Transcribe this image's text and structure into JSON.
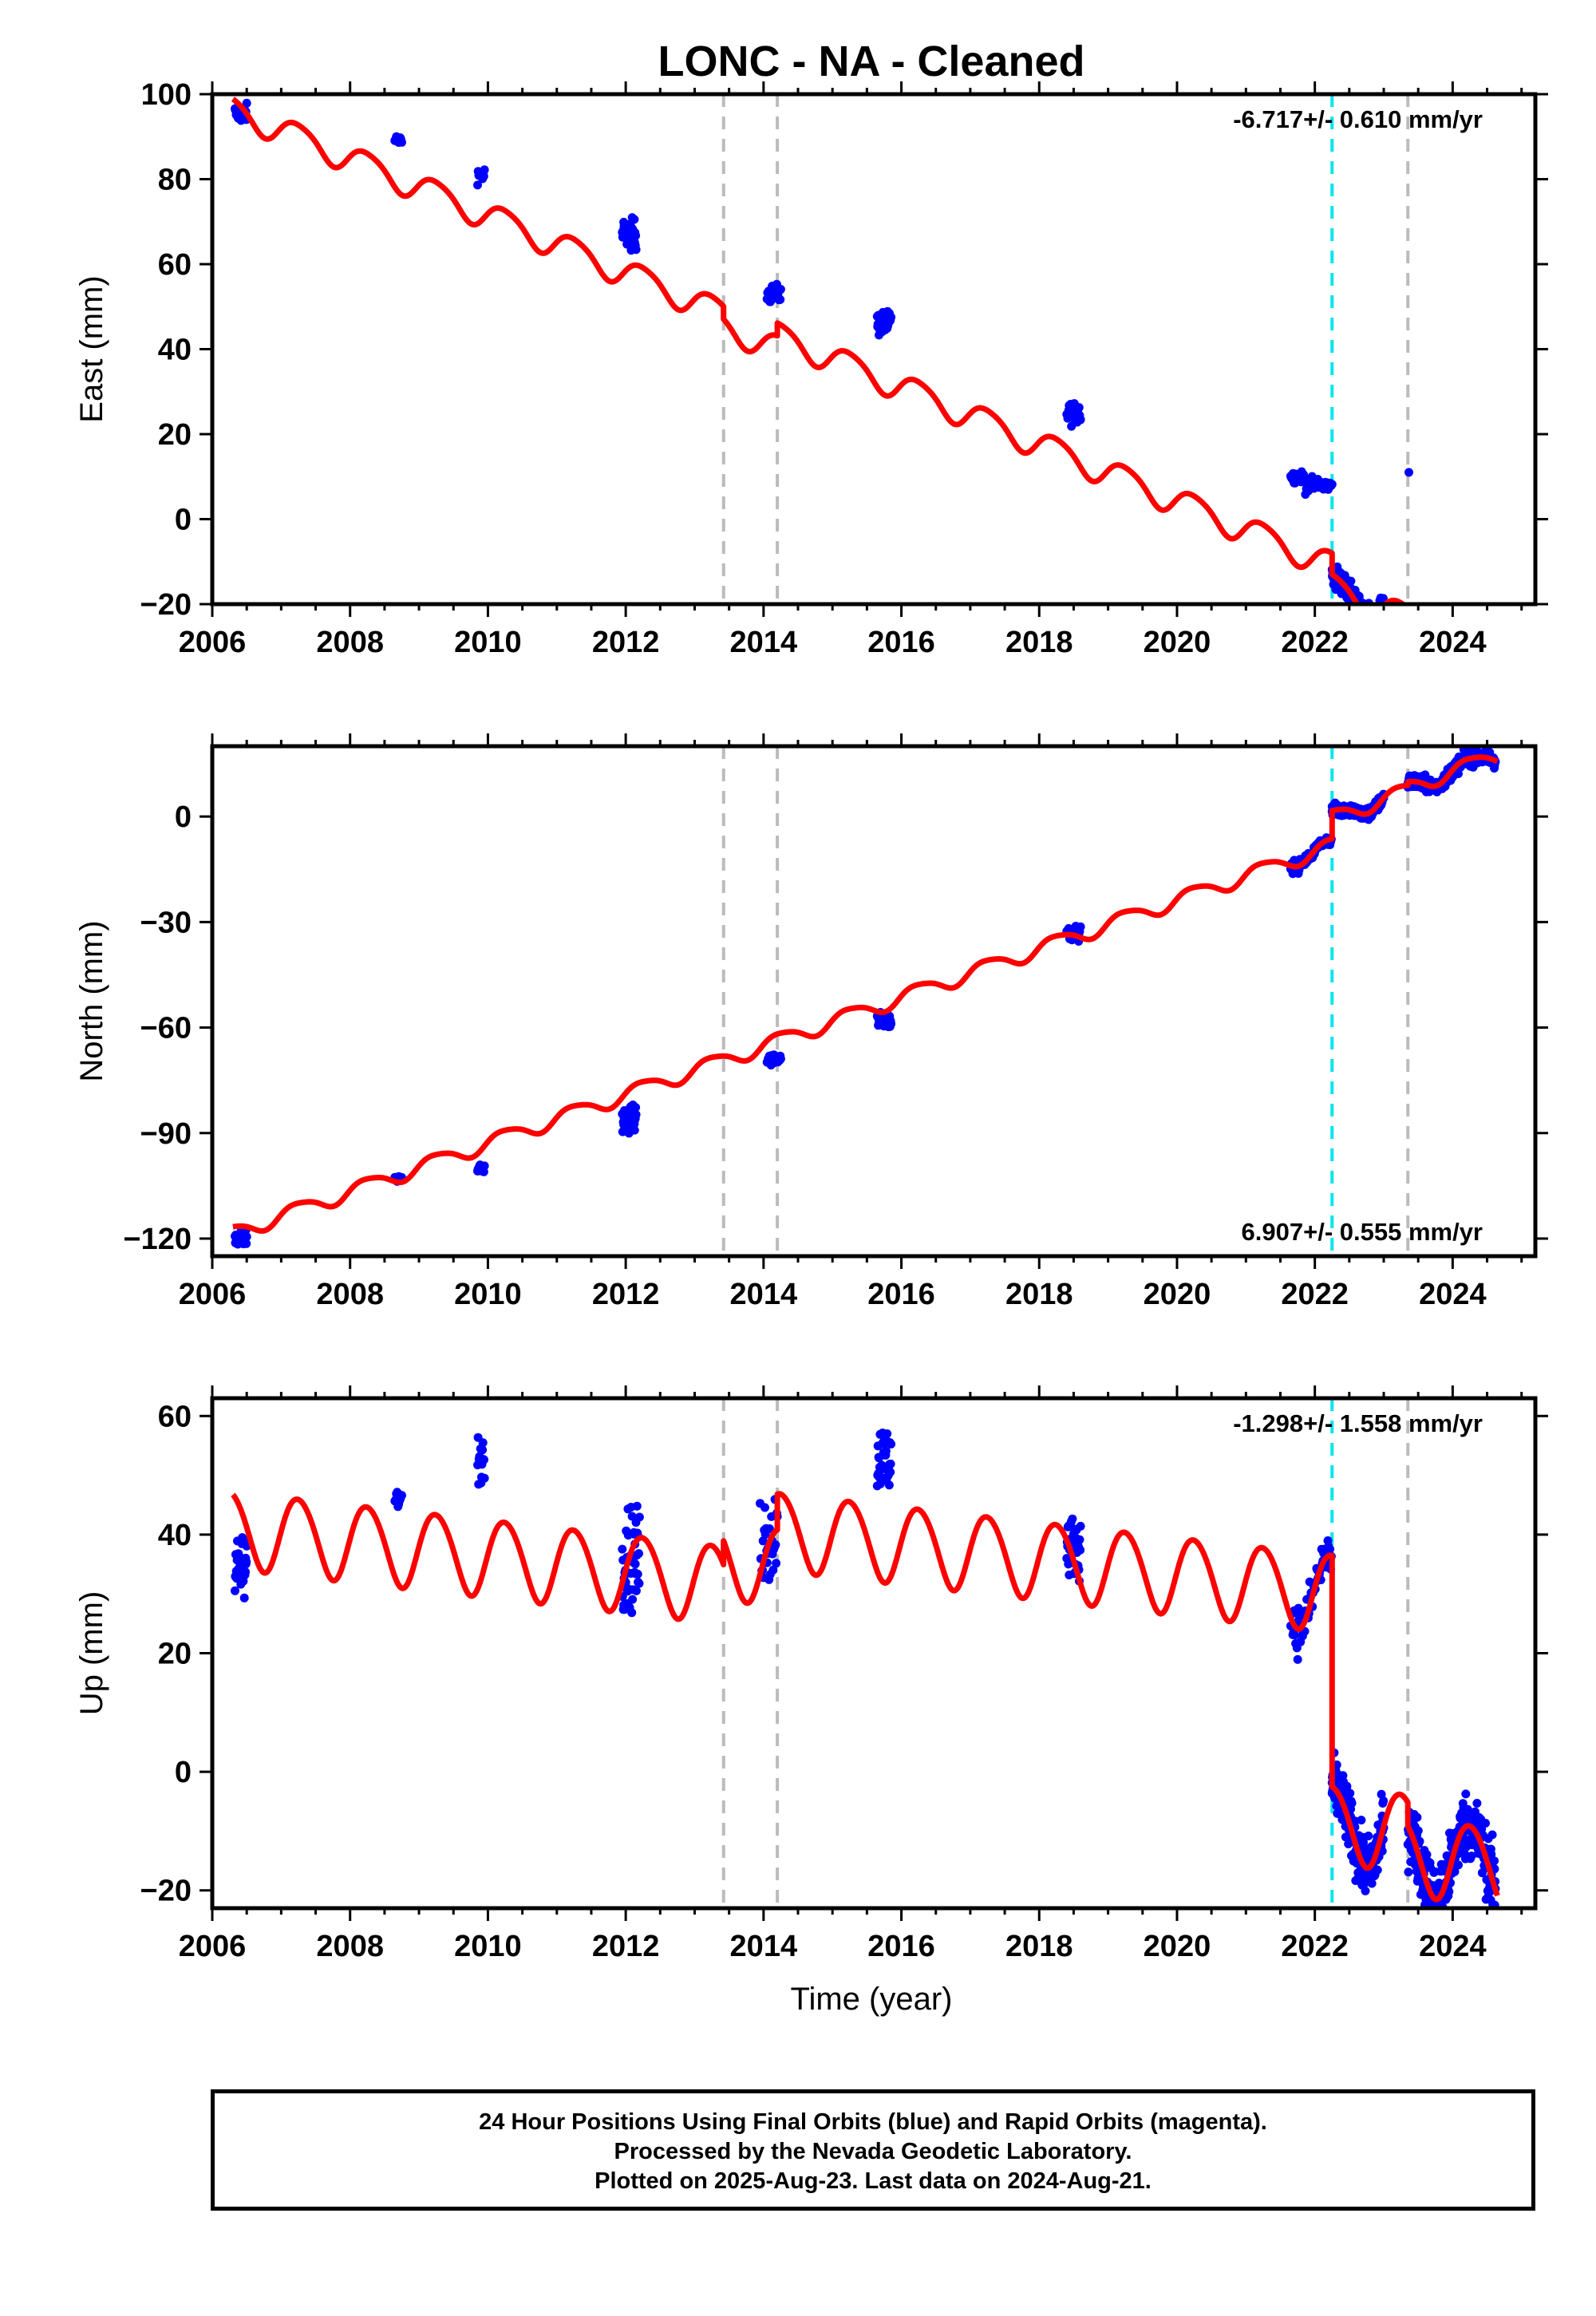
{
  "title": "LONC  - NA - Cleaned",
  "xlabel": "Time (year)",
  "colors": {
    "final_orbits": "#0000ff",
    "model": "#ff0000",
    "equipment_change": "#bbbbbb",
    "earthquake": "#00e5ee",
    "frame": "#000000"
  },
  "footer": {
    "line1": "24 Hour Positions Using Final Orbits (blue) and Rapid Orbits (magenta).",
    "line2": "Processed by the Nevada Geodetic Laboratory.",
    "line3": "Plotted on 2025-Aug-23. Last data on 2024-Aug-21."
  },
  "chart_data": [
    {
      "type": "scatter",
      "ylabel": "East (mm)",
      "rate_label": "-6.717+/- 0.610 mm/yr",
      "rate_position": "top-right",
      "xlim": [
        2006.0,
        2025.2
      ],
      "ylim": [
        -20,
        100
      ],
      "xticks": [
        2006,
        2008,
        2010,
        2012,
        2014,
        2016,
        2018,
        2020,
        2022,
        2024
      ],
      "yticks": [
        -20,
        0,
        20,
        40,
        60,
        80,
        100
      ],
      "equipment_changes": [
        2013.42,
        2014.2,
        2023.35
      ],
      "earthquakes": [
        2022.25
      ],
      "model": {
        "rate": -6.717,
        "ref_year": 2006.35,
        "intercept": 96,
        "amp1": 3.2,
        "amp2": 0.5,
        "segments": [
          {
            "from": 2006.3,
            "to": 2013.42,
            "offset": 0
          },
          {
            "from": 2013.42,
            "to": 2014.2,
            "offset": -3
          },
          {
            "from": 2014.2,
            "to": 2022.25,
            "offset": 0
          },
          {
            "from": 2022.25,
            "to": 2023.35,
            "offset": -5
          },
          {
            "from": 2023.35,
            "to": 2024.65,
            "offset": -9
          }
        ]
      },
      "observations": [
        {
          "from": 2006.33,
          "to": 2006.5,
          "n": 30,
          "center": 95.5,
          "spread": 1.5
        },
        {
          "from": 2008.65,
          "to": 2008.75,
          "n": 10,
          "center": 89.3,
          "spread": 0.8
        },
        {
          "from": 2009.85,
          "to": 2009.95,
          "n": 12,
          "center": 81,
          "spread": 1.3
        },
        {
          "from": 2011.95,
          "to": 2012.15,
          "n": 40,
          "center": 67,
          "spread": 2.5
        },
        {
          "from": 2014.05,
          "to": 2014.25,
          "n": 25,
          "center": 53,
          "spread": 1.5
        },
        {
          "from": 2015.65,
          "to": 2015.85,
          "n": 40,
          "center": 46,
          "spread": 2
        },
        {
          "from": 2018.4,
          "to": 2018.6,
          "n": 30,
          "center": 25,
          "spread": 1.8
        },
        {
          "from": 2021.65,
          "to": 2021.85,
          "n": 30,
          "center": 10,
          "spread": 1
        },
        {
          "from": 2021.85,
          "to": 2022.25,
          "n": 30,
          "center": 8,
          "spread": 1.2
        },
        {
          "from": 2022.25,
          "to": 2023.0,
          "n": 220,
          "model": true,
          "spread": 1.8
        },
        {
          "from": 2023.35,
          "to": 2024.62,
          "n": 320,
          "model": true,
          "spread": 1.8
        },
        {
          "from": 2023.35,
          "to": 2023.38,
          "n": 1,
          "center": 11,
          "spread": 0
        }
      ]
    },
    {
      "type": "scatter",
      "ylabel": "North (mm)",
      "rate_label": "6.907+/- 0.555 mm/yr",
      "rate_position": "bottom-right",
      "xlim": [
        2006.0,
        2025.2
      ],
      "ylim": [
        -125,
        20
      ],
      "xticks": [
        2006,
        2008,
        2010,
        2012,
        2014,
        2016,
        2018,
        2020,
        2022,
        2024
      ],
      "yticks": [
        -120,
        -90,
        -60,
        -30,
        0
      ],
      "equipment_changes": [
        2013.42,
        2014.2,
        2023.35
      ],
      "earthquakes": [
        2022.25
      ],
      "model": {
        "rate": 6.907,
        "ref_year": 2006.35,
        "intercept": -118,
        "amp1": 2.2,
        "amp2": 0.4,
        "segments": [
          {
            "from": 2006.3,
            "to": 2013.42,
            "offset": 0
          },
          {
            "from": 2013.42,
            "to": 2014.2,
            "offset": 0
          },
          {
            "from": 2014.2,
            "to": 2022.25,
            "offset": 0
          },
          {
            "from": 2022.25,
            "to": 2023.35,
            "offset": 8
          },
          {
            "from": 2023.35,
            "to": 2024.65,
            "offset": 9
          }
        ]
      },
      "observations": [
        {
          "from": 2006.33,
          "to": 2006.5,
          "n": 30,
          "center": -119.5,
          "spread": 2
        },
        {
          "from": 2008.65,
          "to": 2008.75,
          "n": 10,
          "center": -103,
          "spread": 0.8
        },
        {
          "from": 2009.85,
          "to": 2009.95,
          "n": 12,
          "center": -100,
          "spread": 1.3
        },
        {
          "from": 2011.95,
          "to": 2012.15,
          "n": 40,
          "center": -86,
          "spread": 2.5
        },
        {
          "from": 2014.05,
          "to": 2014.25,
          "n": 25,
          "center": -69,
          "spread": 1.5
        },
        {
          "from": 2015.65,
          "to": 2015.85,
          "n": 40,
          "center": -58,
          "spread": 1.5
        },
        {
          "from": 2018.4,
          "to": 2018.6,
          "n": 30,
          "center": -33,
          "spread": 1.5
        },
        {
          "from": 2021.65,
          "to": 2022.25,
          "n": 60,
          "model": true,
          "spread": 1.2
        },
        {
          "from": 2022.25,
          "to": 2023.0,
          "n": 220,
          "model": true,
          "spread": 1.3
        },
        {
          "from": 2023.35,
          "to": 2024.62,
          "n": 320,
          "model": true,
          "spread": 1.5
        }
      ]
    },
    {
      "type": "scatter",
      "ylabel": "Up (mm)",
      "rate_label": "-1.298+/- 1.558 mm/yr",
      "rate_position": "top-right",
      "xlim": [
        2006.0,
        2025.2
      ],
      "ylim": [
        -23,
        63
      ],
      "xticks": [
        2006,
        2008,
        2010,
        2012,
        2014,
        2016,
        2018,
        2020,
        2022,
        2024
      ],
      "yticks": [
        -20,
        0,
        20,
        40,
        60
      ],
      "equipment_changes": [
        2013.42,
        2014.2,
        2023.35
      ],
      "earthquakes": [
        2022.25
      ],
      "model": {
        "rate": -1.298,
        "ref_year": 2006.35,
        "intercept": 41,
        "amp1": 6.5,
        "amp2": 0.5,
        "segments": [
          {
            "from": 2006.3,
            "to": 2013.42,
            "offset": 0
          },
          {
            "from": 2013.42,
            "to": 2014.2,
            "offset": 4
          },
          {
            "from": 2014.2,
            "to": 2022.25,
            "offset": 10
          },
          {
            "from": 2022.25,
            "to": 2023.35,
            "offset": -29
          },
          {
            "from": 2023.35,
            "to": 2024.65,
            "offset": -33
          }
        ]
      },
      "observations": [
        {
          "from": 2006.33,
          "to": 2006.5,
          "n": 35,
          "center": 34,
          "spread": 4
        },
        {
          "from": 2008.65,
          "to": 2008.75,
          "n": 10,
          "center": 46,
          "spread": 1
        },
        {
          "from": 2009.85,
          "to": 2009.95,
          "n": 15,
          "center": 53,
          "spread": 3
        },
        {
          "from": 2011.95,
          "to": 2012.2,
          "n": 50,
          "center": 36,
          "spread": 6
        },
        {
          "from": 2013.95,
          "to": 2014.2,
          "n": 30,
          "center": 40,
          "spread": 6
        },
        {
          "from": 2015.65,
          "to": 2015.85,
          "n": 40,
          "center": 53,
          "spread": 4
        },
        {
          "from": 2018.4,
          "to": 2018.6,
          "n": 35,
          "center": 38,
          "spread": 3.5
        },
        {
          "from": 2021.65,
          "to": 2022.25,
          "n": 60,
          "model": true,
          "spread": 3
        },
        {
          "from": 2022.25,
          "to": 2023.0,
          "n": 220,
          "model": true,
          "spread": 3.5
        },
        {
          "from": 2023.35,
          "to": 2024.62,
          "n": 320,
          "model": true,
          "spread": 4
        }
      ]
    }
  ]
}
